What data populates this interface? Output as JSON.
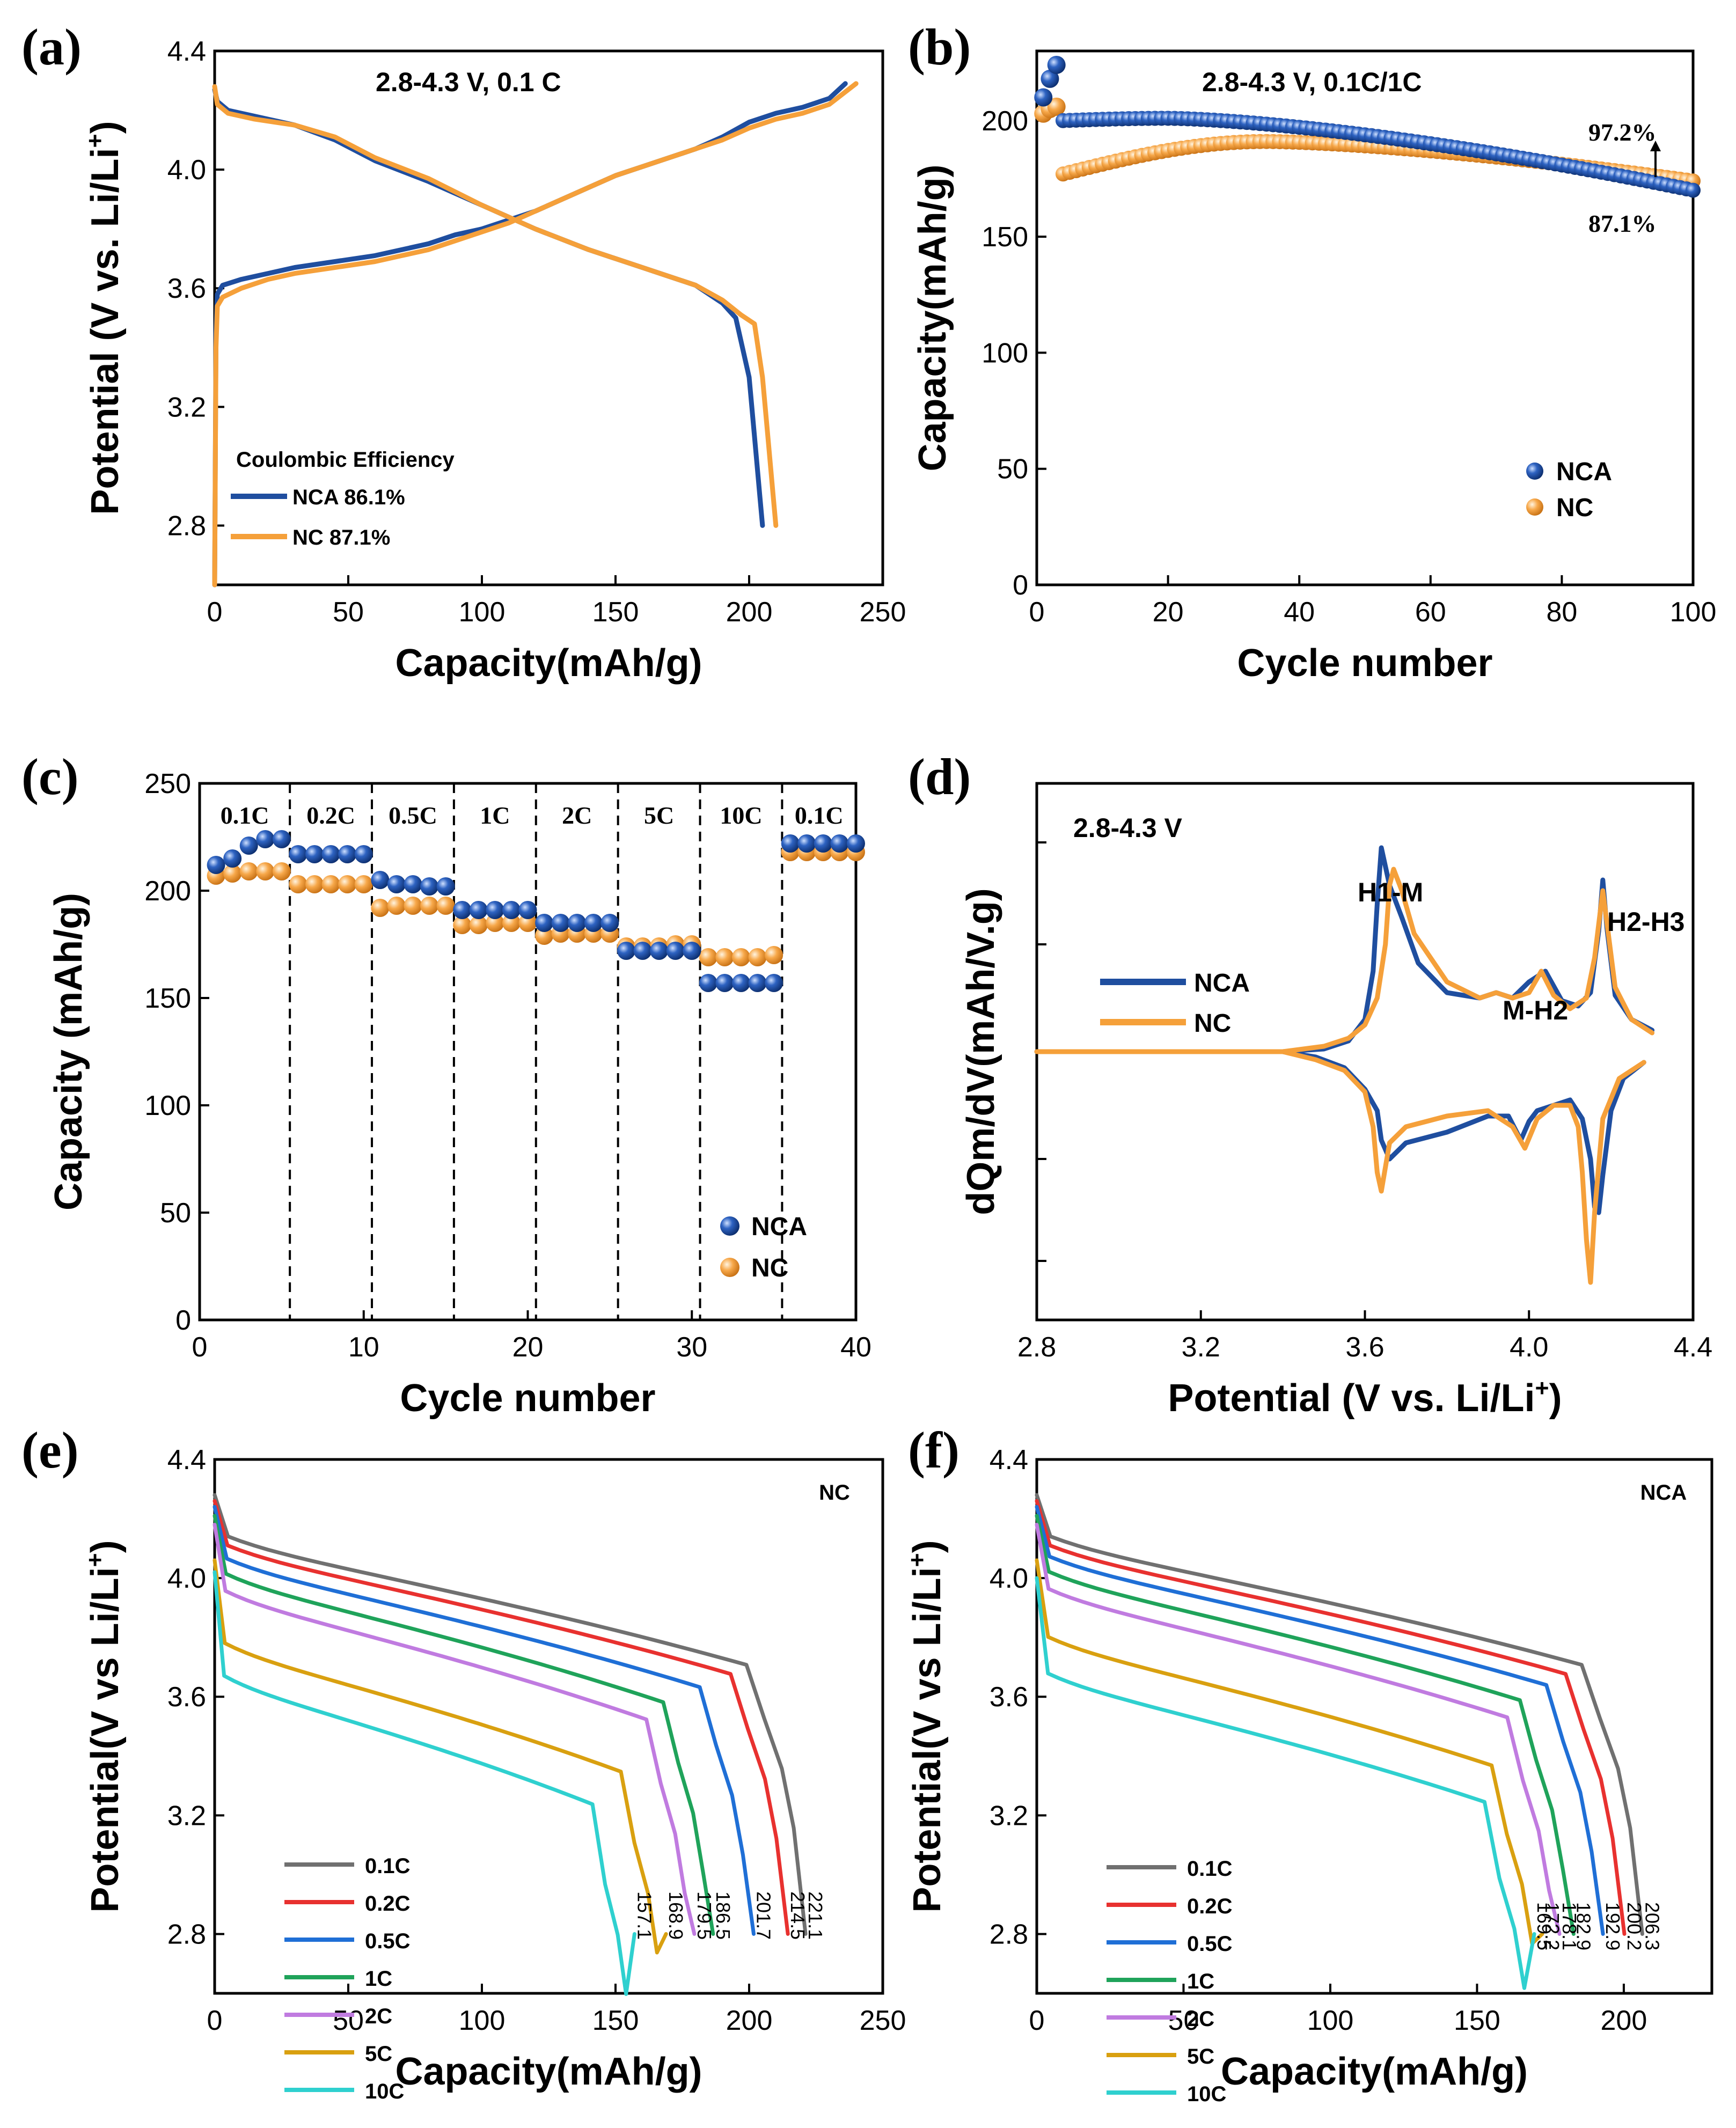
{
  "colors": {
    "nca": "#1F4E9F",
    "nc": "#F5A03A",
    "rates": {
      "0.1C": "#707070",
      "0.2C": "#E8312F",
      "0.5C": "#1F6FD6",
      "1C": "#1FA35A",
      "2C": "#C07BE0",
      "5C": "#D9A010",
      "10C": "#2FD0CF"
    }
  },
  "chart_data": [
    {
      "panel": "(a)",
      "type": "line",
      "title": "2.8-4.3 V, 0.1 C",
      "xlabel": "Capacity(mAh/g)",
      "ylabel": "Potential (V vs. Li/Li",
      "ylabel_sup": "+",
      "ylabel_end": ")",
      "xlim": [
        0,
        250
      ],
      "ylim": [
        2.6,
        4.4
      ],
      "xticks": [
        0,
        50,
        100,
        150,
        200,
        250
      ],
      "yticks": [
        2.8,
        3.2,
        3.6,
        4.0,
        4.4
      ],
      "xtick_labels": [
        "0",
        "50",
        "100",
        "150",
        "200",
        "250"
      ],
      "ytick_labels": [
        "2.8",
        "3.2",
        "3.6",
        "4.0",
        "4.4"
      ],
      "legend_title": "Coulombic Efficiency",
      "legend": [
        "NCA  86.1%",
        "NC    87.1%"
      ],
      "series": [
        {
          "name": "NCA charge",
          "x": [
            0,
            0.5,
            1,
            3,
            10,
            20,
            30,
            45,
            60,
            70,
            80,
            90,
            100,
            110,
            120,
            130,
            140,
            150,
            160,
            170,
            180,
            190,
            200,
            210,
            220,
            230,
            236
          ],
          "y": [
            2.6,
            3.45,
            3.58,
            3.61,
            3.63,
            3.65,
            3.67,
            3.69,
            3.71,
            3.73,
            3.75,
            3.78,
            3.8,
            3.83,
            3.86,
            3.9,
            3.94,
            3.98,
            4.01,
            4.04,
            4.07,
            4.11,
            4.16,
            4.19,
            4.21,
            4.24,
            4.29
          ]
        },
        {
          "name": "NCA discharge",
          "x": [
            0,
            1,
            5,
            15,
            30,
            45,
            60,
            80,
            100,
            120,
            140,
            160,
            180,
            190,
            195,
            200,
            202,
            204,
            205
          ],
          "y": [
            4.27,
            4.23,
            4.2,
            4.18,
            4.15,
            4.1,
            4.03,
            3.96,
            3.88,
            3.8,
            3.73,
            3.67,
            3.61,
            3.55,
            3.5,
            3.3,
            3.1,
            2.9,
            2.8
          ]
        },
        {
          "name": "NC charge",
          "x": [
            0,
            0.5,
            1,
            3,
            10,
            20,
            30,
            45,
            60,
            70,
            80,
            90,
            100,
            110,
            120,
            130,
            140,
            150,
            160,
            170,
            180,
            190,
            200,
            210,
            220,
            230,
            240
          ],
          "y": [
            2.6,
            3.4,
            3.54,
            3.57,
            3.6,
            3.63,
            3.65,
            3.67,
            3.69,
            3.71,
            3.73,
            3.76,
            3.79,
            3.82,
            3.86,
            3.9,
            3.94,
            3.98,
            4.01,
            4.04,
            4.07,
            4.1,
            4.14,
            4.17,
            4.19,
            4.22,
            4.29
          ]
        },
        {
          "name": "NC discharge",
          "x": [
            0,
            1,
            5,
            15,
            30,
            45,
            60,
            80,
            100,
            120,
            140,
            160,
            180,
            190,
            197,
            202,
            205,
            207,
            209,
            210
          ],
          "y": [
            4.28,
            4.22,
            4.19,
            4.17,
            4.15,
            4.11,
            4.04,
            3.97,
            3.88,
            3.8,
            3.73,
            3.67,
            3.61,
            3.56,
            3.51,
            3.48,
            3.3,
            3.1,
            2.9,
            2.8
          ]
        }
      ]
    },
    {
      "panel": "(b)",
      "type": "scatter",
      "title": "2.8-4.3 V, 0.1C/1C",
      "xlabel": "Cycle number",
      "ylabel": "Capacity(mAh/g)",
      "xlim": [
        0,
        100
      ],
      "ylim": [
        0,
        230
      ],
      "xticks": [
        0,
        20,
        40,
        60,
        80,
        100
      ],
      "yticks": [
        0,
        50,
        100,
        150,
        200
      ],
      "xtick_labels": [
        "0",
        "20",
        "40",
        "60",
        "80",
        "100"
      ],
      "ytick_labels": [
        "0",
        "50",
        "100",
        "150",
        "200"
      ],
      "legend": [
        "NCA",
        "NC"
      ],
      "annotations": [
        "97.2%",
        "87.1%"
      ],
      "series": [
        {
          "name": "NCA",
          "initial_points": [
            [
              1,
              210
            ],
            [
              2,
              218
            ],
            [
              3,
              224
            ]
          ],
          "start": 200,
          "peak": 201,
          "peak_cycle": 20,
          "end": 170
        },
        {
          "name": "NC",
          "initial_points": [
            [
              1,
              203
            ],
            [
              2,
              205
            ],
            [
              3,
              206
            ]
          ],
          "start": 177,
          "peak": 191,
          "peak_cycle": 35,
          "end": 174
        }
      ]
    },
    {
      "panel": "(c)",
      "type": "scatter",
      "xlabel": "Cycle number",
      "ylabel": "Capacity (mAh/g)",
      "xlim": [
        0,
        40
      ],
      "ylim": [
        0,
        250
      ],
      "xticks": [
        0,
        10,
        20,
        30,
        40
      ],
      "yticks": [
        0,
        50,
        100,
        150,
        200,
        250
      ],
      "xtick_labels": [
        "0",
        "10",
        "20",
        "30",
        "40"
      ],
      "ytick_labels": [
        "0",
        "50",
        "100",
        "150",
        "200",
        "250"
      ],
      "rate_labels": [
        "0.1C",
        "0.2C",
        "0.5C",
        "1C",
        "2C",
        "5C",
        "10C",
        "0.1C"
      ],
      "dividers": [
        5.5,
        10.5,
        15.5,
        20.5,
        25.5,
        30.5,
        35.5
      ],
      "legend": [
        "NCA",
        "NC"
      ],
      "series": [
        {
          "name": "NCA",
          "x": [
            1,
            2,
            3,
            4,
            5,
            6,
            7,
            8,
            9,
            10,
            11,
            12,
            13,
            14,
            15,
            16,
            17,
            18,
            19,
            20,
            21,
            22,
            23,
            24,
            25,
            26,
            27,
            28,
            29,
            30,
            31,
            32,
            33,
            34,
            35,
            36,
            37,
            38,
            39,
            40
          ],
          "values": [
            212,
            215,
            221,
            224,
            224,
            217,
            217,
            217,
            217,
            217,
            205,
            203,
            203,
            202,
            202,
            191,
            191,
            191,
            191,
            191,
            185,
            185,
            185,
            185,
            185,
            172,
            172,
            172,
            172,
            172,
            157,
            157,
            157,
            157,
            157,
            222,
            222,
            222,
            222,
            222
          ]
        },
        {
          "name": "NC",
          "x": [
            1,
            2,
            3,
            4,
            5,
            6,
            7,
            8,
            9,
            10,
            11,
            12,
            13,
            14,
            15,
            16,
            17,
            18,
            19,
            20,
            21,
            22,
            23,
            24,
            25,
            26,
            27,
            28,
            29,
            30,
            31,
            32,
            33,
            34,
            35,
            36,
            37,
            38,
            39,
            40
          ],
          "values": [
            207,
            208,
            209,
            209,
            209,
            203,
            203,
            203,
            203,
            203,
            192,
            193,
            193,
            193,
            193,
            184,
            184,
            185,
            185,
            185,
            179,
            180,
            180,
            180,
            180,
            174,
            174,
            174,
            175,
            175,
            169,
            169,
            169,
            169,
            170,
            218,
            218,
            218,
            218,
            218
          ]
        }
      ]
    },
    {
      "panel": "(d)",
      "type": "line",
      "title": "2.8-4.3 V",
      "xlabel": "Potential (V vs. Li/Li",
      "xlabel_sup": "+",
      "xlabel_end": ")",
      "ylabel": "dQm/dV(mAh/V.g)",
      "xlim": [
        2.8,
        4.4
      ],
      "ylim": [
        -1,
        1
      ],
      "xticks": [
        2.8,
        3.2,
        3.6,
        4.0,
        4.4
      ],
      "xtick_labels": [
        "2.8",
        "3.2",
        "3.6",
        "4.0",
        "4.4"
      ],
      "annotations": [
        "H1-M",
        "M-H2",
        "H2-H3"
      ],
      "legend": [
        "NCA",
        "NC"
      ],
      "series": [
        {
          "name": "NCA charge",
          "x": [
            2.8,
            3.4,
            3.5,
            3.56,
            3.6,
            3.62,
            3.63,
            3.64,
            3.66,
            3.69,
            3.73,
            3.8,
            3.88,
            3.92,
            3.96,
            4.0,
            4.04,
            4.08,
            4.12,
            4.15,
            4.17,
            4.18,
            4.19,
            4.21,
            4.25,
            4.3
          ],
          "y": [
            0,
            0,
            0.01,
            0.04,
            0.12,
            0.3,
            0.55,
            0.76,
            0.62,
            0.5,
            0.33,
            0.22,
            0.2,
            0.22,
            0.2,
            0.26,
            0.3,
            0.19,
            0.17,
            0.22,
            0.45,
            0.64,
            0.46,
            0.21,
            0.12,
            0.08
          ]
        },
        {
          "name": "NCA discharge",
          "x": [
            2.8,
            3.4,
            3.48,
            3.55,
            3.6,
            3.63,
            3.64,
            3.66,
            3.7,
            3.8,
            3.9,
            3.95,
            3.98,
            4.0,
            4.02,
            4.06,
            4.1,
            4.13,
            4.15,
            4.16,
            4.17,
            4.18,
            4.2,
            4.23,
            4.28
          ],
          "y": [
            0,
            0,
            -0.02,
            -0.06,
            -0.14,
            -0.22,
            -0.33,
            -0.4,
            -0.34,
            -0.3,
            -0.24,
            -0.24,
            -0.33,
            -0.26,
            -0.22,
            -0.2,
            -0.18,
            -0.25,
            -0.4,
            -0.58,
            -0.6,
            -0.46,
            -0.22,
            -0.1,
            -0.04
          ]
        },
        {
          "name": "NC charge",
          "x": [
            2.8,
            3.4,
            3.5,
            3.56,
            3.6,
            3.63,
            3.65,
            3.66,
            3.67,
            3.69,
            3.72,
            3.8,
            3.88,
            3.92,
            3.96,
            4.0,
            4.03,
            4.06,
            4.1,
            4.14,
            4.16,
            4.18,
            4.19,
            4.21,
            4.25,
            4.3
          ],
          "y": [
            0,
            0,
            0.02,
            0.05,
            0.1,
            0.2,
            0.4,
            0.62,
            0.68,
            0.6,
            0.44,
            0.26,
            0.2,
            0.22,
            0.2,
            0.22,
            0.3,
            0.21,
            0.16,
            0.2,
            0.35,
            0.6,
            0.48,
            0.24,
            0.12,
            0.07
          ]
        },
        {
          "name": "NC discharge",
          "x": [
            2.8,
            3.4,
            3.48,
            3.55,
            3.6,
            3.62,
            3.63,
            3.64,
            3.66,
            3.7,
            3.8,
            3.9,
            3.96,
            3.99,
            4.02,
            4.06,
            4.1,
            4.12,
            4.13,
            4.14,
            4.15,
            4.16,
            4.18,
            4.22,
            4.28
          ],
          "y": [
            0,
            0,
            -0.03,
            -0.07,
            -0.15,
            -0.28,
            -0.45,
            -0.52,
            -0.34,
            -0.28,
            -0.24,
            -0.22,
            -0.28,
            -0.36,
            -0.25,
            -0.2,
            -0.2,
            -0.28,
            -0.45,
            -0.7,
            -0.86,
            -0.6,
            -0.25,
            -0.1,
            -0.04
          ]
        }
      ]
    },
    {
      "panel": "(e)",
      "type": "line",
      "title": "NC",
      "xlabel": "Capacity(mAh/g)",
      "ylabel": "Potential(V vs Li/Li",
      "ylabel_sup": "+",
      "ylabel_end": ")",
      "xlim": [
        0,
        250
      ],
      "ylim": [
        2.6,
        4.4
      ],
      "xticks": [
        0,
        50,
        100,
        150,
        200,
        250
      ],
      "yticks": [
        2.8,
        3.2,
        3.6,
        4.0,
        4.4
      ],
      "xtick_labels": [
        "0",
        "50",
        "100",
        "150",
        "200",
        "250"
      ],
      "ytick_labels": [
        "2.8",
        "3.2",
        "3.6",
        "4.0",
        "4.4"
      ],
      "legend": [
        "0.1C",
        "0.2C",
        "0.5C",
        "1C",
        "2C",
        "5C",
        "10C"
      ],
      "series": [
        {
          "name": "0.1C",
          "start_v": 4.28,
          "offset": 0,
          "end_capacity": 221.1,
          "end_label": "221.1"
        },
        {
          "name": "0.2C",
          "start_v": 4.26,
          "offset": 0.015,
          "end_capacity": 214.5,
          "end_label": "214.5"
        },
        {
          "name": "0.5C",
          "start_v": 4.24,
          "offset": 0.05,
          "end_capacity": 201.7,
          "end_label": "201.7"
        },
        {
          "name": "1C",
          "start_v": 4.21,
          "offset": 0.08,
          "end_capacity": 186.5,
          "end_label": "186.5"
        },
        {
          "name": "2C",
          "start_v": 4.18,
          "offset": 0.12,
          "end_capacity": 179.5,
          "end_label": "179.5"
        },
        {
          "name": "5C",
          "start_v": 4.06,
          "offset": 0.2,
          "end_capacity": 168.9,
          "end_label": "168.9"
        },
        {
          "name": "10C",
          "start_v": 4.02,
          "offset": 0.3,
          "end_capacity": 157.1,
          "end_label": "157.1"
        }
      ]
    },
    {
      "panel": "(f)",
      "type": "line",
      "title": "NCA",
      "xlabel": "Capacity(mAh/g)",
      "ylabel": "Potential(V vs Li/Li",
      "ylabel_sup": "+",
      "ylabel_end": ")",
      "xlim": [
        0,
        230
      ],
      "ylim": [
        2.6,
        4.4
      ],
      "xticks": [
        0,
        50,
        100,
        150,
        200
      ],
      "yticks": [
        2.8,
        3.2,
        3.6,
        4.0,
        4.4
      ],
      "xtick_labels": [
        "0",
        "50",
        "100",
        "150",
        "200"
      ],
      "ytick_labels": [
        "2.8",
        "3.2",
        "3.6",
        "4.0",
        "4.4"
      ],
      "legend": [
        "0.1C",
        "0.2C",
        "0.5C",
        "1C",
        "2C",
        "5C",
        "10C"
      ],
      "series": [
        {
          "name": "0.1C",
          "start_v": 4.28,
          "offset": 0,
          "end_capacity": 206.3,
          "end_label": "206.3"
        },
        {
          "name": "0.2C",
          "start_v": 4.26,
          "offset": 0.015,
          "end_capacity": 200.2,
          "end_label": "200.2"
        },
        {
          "name": "0.5C",
          "start_v": 4.24,
          "offset": 0.04,
          "end_capacity": 192.9,
          "end_label": "192.9"
        },
        {
          "name": "1C",
          "start_v": 4.21,
          "offset": 0.07,
          "end_capacity": 182.9,
          "end_label": "182.9"
        },
        {
          "name": "2C",
          "start_v": 4.18,
          "offset": 0.11,
          "end_capacity": 178.1,
          "end_label": "178.1"
        },
        {
          "name": "5C",
          "start_v": 4.06,
          "offset": 0.17,
          "end_capacity": 172.2,
          "end_label": "172.2"
        },
        {
          "name": "10C",
          "start_v": 4.0,
          "offset": 0.26,
          "end_capacity": 169.5,
          "end_label": "169.5"
        }
      ]
    }
  ]
}
